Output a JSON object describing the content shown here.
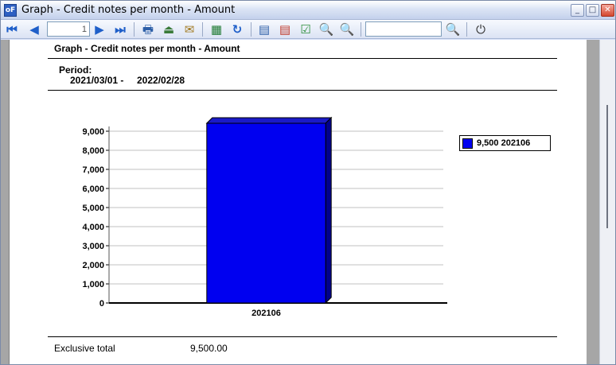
{
  "window": {
    "title": "Graph - Credit notes per month - Amount",
    "app_icon": "oF"
  },
  "window_controls": {
    "minimize": "_",
    "maximize": "□",
    "close": "✕"
  },
  "toolbar": {
    "first_icon": "⏮",
    "prev_icon": "◀",
    "page_value": "1",
    "next_icon": "▶",
    "last_icon": "⏭",
    "print_icon": "🖶",
    "export_icon": "⏏",
    "email_icon": "✉",
    "excel_icon": "▦",
    "refresh_icon": "↻",
    "layout1_icon": "▤",
    "layout2_icon": "▤",
    "layout3_icon": "☑",
    "zoom_out_icon": "🔍",
    "zoom_in_icon": "🔍",
    "search_value": "",
    "search_icon": "🔍",
    "exit_icon": "⏻"
  },
  "report": {
    "title": "Graph - Credit notes per month - Amount",
    "period_label": "Period:",
    "period_start": "2021/03/01 -",
    "period_end": "2022/02/28",
    "total_label": "Exclusive total",
    "total_value": "9,500.00"
  },
  "colors": {
    "bar": "#0000f0",
    "bar_side": "#00008c",
    "bar_top": "#1a1ac8",
    "grid": "#c0c0c0"
  },
  "chart_data": {
    "type": "bar",
    "categories": [
      "202106"
    ],
    "values": [
      9500
    ],
    "ylim": [
      0,
      9000
    ],
    "yticks": [
      0,
      1000,
      2000,
      3000,
      4000,
      5000,
      6000,
      7000,
      8000,
      9000
    ],
    "ytick_labels": [
      "0",
      "1,000",
      "2,000",
      "3,000",
      "4,000",
      "5,000",
      "6,000",
      "7,000",
      "8,000",
      "9,000"
    ],
    "legend": [
      {
        "label": "9,500 202106"
      }
    ],
    "legend_position": "right",
    "grid": true
  }
}
